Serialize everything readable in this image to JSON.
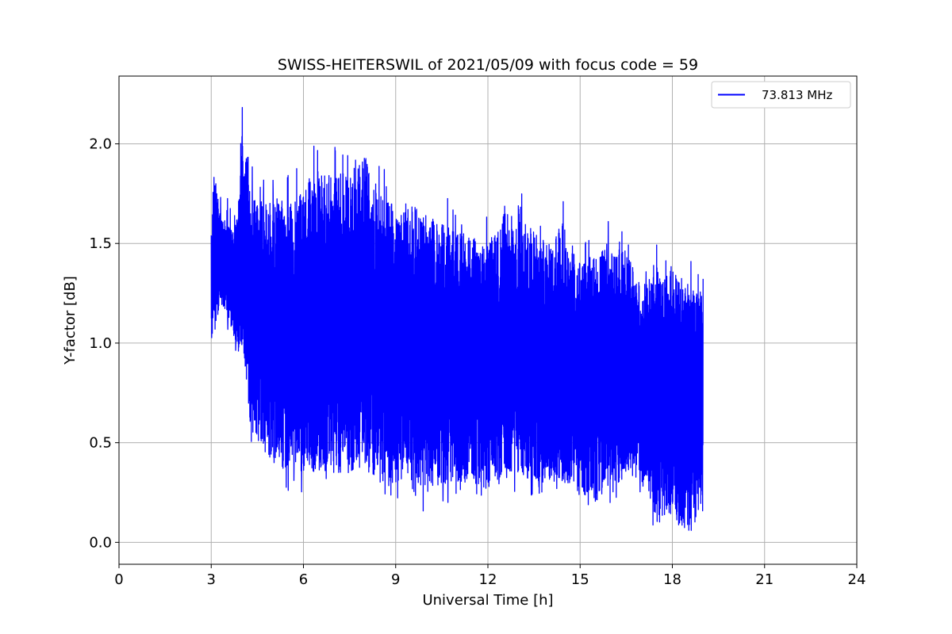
{
  "chart_data": {
    "type": "line",
    "title": "SWISS-HEITERSWIL of 2021/05/09 with focus code = 59",
    "xlabel": "Universal Time [h]",
    "ylabel": "Y-factor [dB]",
    "xlim": [
      0,
      24
    ],
    "ylim": [
      -0.11,
      2.34
    ],
    "xticks": [
      0,
      3,
      6,
      9,
      12,
      15,
      18,
      21,
      24
    ],
    "xtick_labels": [
      "0",
      "3",
      "6",
      "9",
      "12",
      "15",
      "18",
      "21",
      "24"
    ],
    "yticks": [
      0.0,
      0.5,
      1.0,
      1.5,
      2.0
    ],
    "ytick_labels": [
      "0.0",
      "0.5",
      "1.0",
      "1.5",
      "2.0"
    ],
    "grid": true,
    "legend_position": "top-right",
    "series": [
      {
        "name": "73.813 MHz",
        "color": "#0000ff",
        "x": [
          3.0,
          3.1,
          3.3,
          3.5,
          3.7,
          3.9,
          4.0,
          4.1,
          4.2,
          4.3,
          4.5,
          5.0,
          5.5,
          6.0,
          6.5,
          7.0,
          7.5,
          8.0,
          8.2,
          8.5,
          9.0,
          9.5,
          10.0,
          10.5,
          11.0,
          11.5,
          12.0,
          12.5,
          13.0,
          13.5,
          14.0,
          14.5,
          15.0,
          15.5,
          16.0,
          16.5,
          17.0,
          17.5,
          18.0,
          18.5,
          19.0
        ],
        "upper": [
          1.56,
          1.9,
          1.65,
          1.6,
          1.6,
          1.75,
          2.2,
          2.05,
          1.95,
          1.75,
          1.7,
          1.75,
          1.7,
          1.8,
          1.9,
          1.85,
          1.85,
          1.95,
          1.8,
          1.75,
          1.7,
          1.7,
          1.65,
          1.6,
          1.55,
          1.55,
          1.5,
          1.65,
          1.7,
          1.55,
          1.5,
          1.6,
          1.4,
          1.45,
          1.5,
          1.45,
          1.3,
          1.35,
          1.4,
          1.3,
          1.25
        ],
        "lower": [
          1.0,
          1.05,
          1.2,
          1.15,
          1.05,
          0.95,
          0.95,
          0.85,
          0.65,
          0.55,
          0.5,
          0.4,
          0.35,
          0.35,
          0.35,
          0.35,
          0.35,
          0.35,
          0.35,
          0.3,
          0.3,
          0.25,
          0.25,
          0.3,
          0.3,
          0.3,
          0.25,
          0.35,
          0.35,
          0.3,
          0.3,
          0.3,
          0.25,
          0.2,
          0.3,
          0.3,
          0.3,
          0.1,
          0.1,
          0.05,
          0.15
        ]
      }
    ]
  }
}
